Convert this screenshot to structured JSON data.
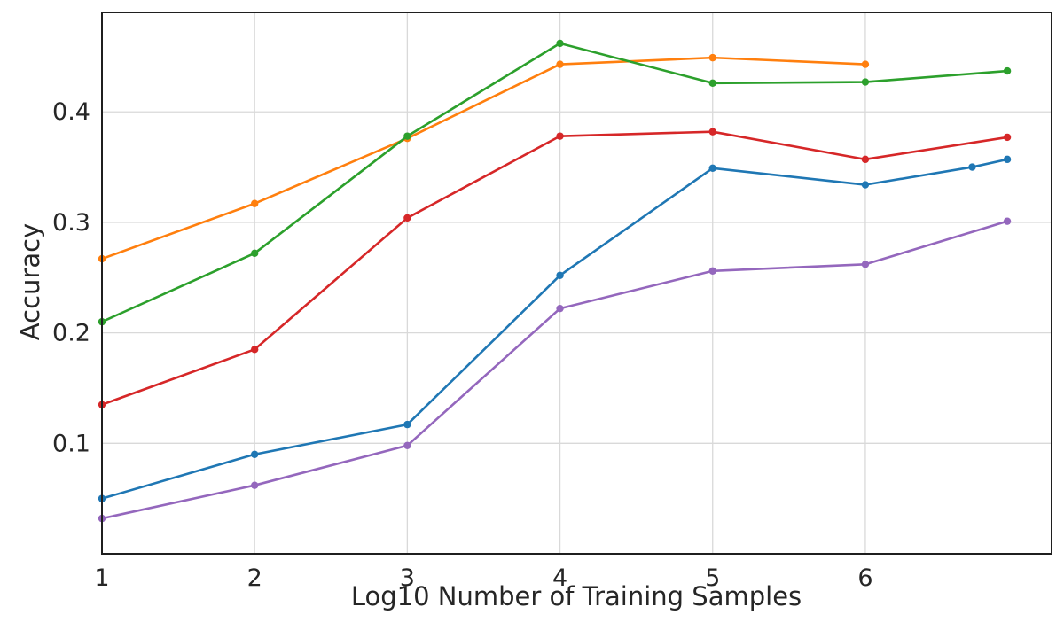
{
  "chart_data": {
    "type": "line",
    "title": "",
    "xlabel": "Log10 Number of Training Samples",
    "ylabel": "Accuracy",
    "xlim": [
      1,
      7.22
    ],
    "ylim": [
      0,
      0.49
    ],
    "x_ticks": [
      1,
      2,
      3,
      4,
      5,
      6
    ],
    "y_ticks": [
      0.1,
      0.2,
      0.3,
      0.4
    ],
    "grid": true,
    "legend_position": "none",
    "grid_color": "#d9d9d9",
    "axis_color": "#1f1f1f",
    "tick_label_color": "#262626",
    "series": [
      {
        "name": "blue",
        "color": "#1f77b4",
        "x": [
          1,
          2,
          3,
          4,
          5,
          6,
          6.7,
          6.93
        ],
        "y": [
          0.05,
          0.09,
          0.117,
          0.252,
          0.349,
          0.334,
          0.35,
          0.357
        ]
      },
      {
        "name": "orange",
        "color": "#ff7f0e",
        "x": [
          1,
          2,
          3,
          4,
          5,
          6
        ],
        "y": [
          0.267,
          0.317,
          0.376,
          0.443,
          0.449,
          0.443
        ]
      },
      {
        "name": "green",
        "color": "#2ca02c",
        "x": [
          1,
          2,
          3,
          4,
          5,
          6,
          6.93
        ],
        "y": [
          0.21,
          0.272,
          0.378,
          0.462,
          0.426,
          0.427,
          0.437
        ]
      },
      {
        "name": "red",
        "color": "#d62728",
        "x": [
          1,
          2,
          3,
          4,
          5,
          6,
          6.93
        ],
        "y": [
          0.135,
          0.185,
          0.304,
          0.378,
          0.382,
          0.357,
          0.377
        ]
      },
      {
        "name": "purple",
        "color": "#9467bd",
        "x": [
          1,
          2,
          3,
          4,
          5,
          6,
          6.93
        ],
        "y": [
          0.032,
          0.062,
          0.098,
          0.222,
          0.256,
          0.262,
          0.301
        ]
      }
    ]
  }
}
